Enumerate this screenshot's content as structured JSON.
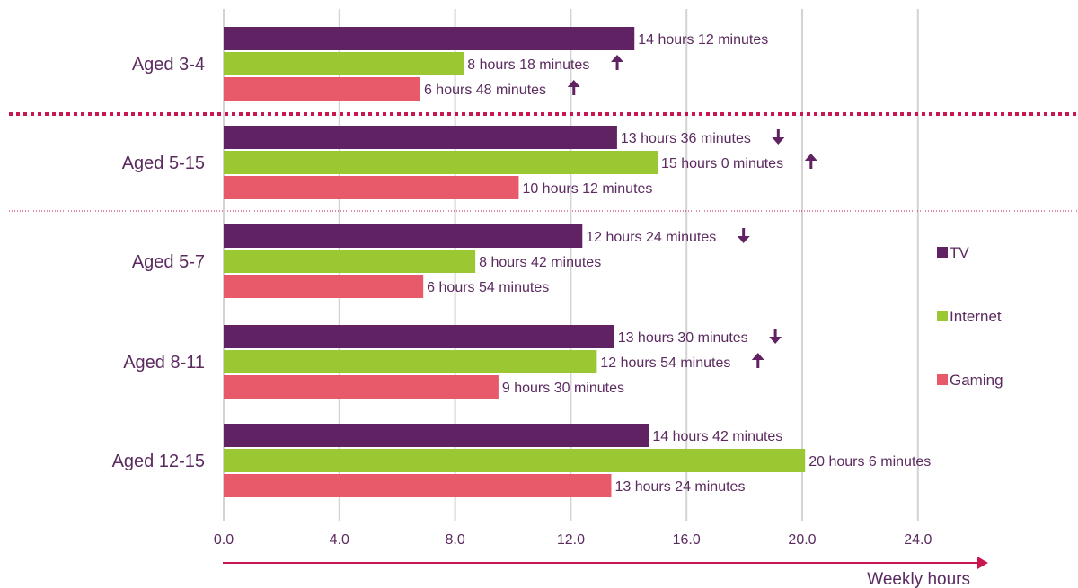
{
  "chart_data": {
    "type": "bar",
    "orientation": "horizontal",
    "categories": [
      "Aged 3-4",
      "Aged 5-15",
      "Aged 5-7",
      "Aged 8-11",
      "Aged 12-15"
    ],
    "series": [
      {
        "name": "TV",
        "color": "#612263",
        "values": [
          14.2,
          13.6,
          12.4,
          13.5,
          14.7
        ],
        "labels": [
          "14 hours 12 minutes",
          "13 hours 36 minutes",
          "12 hours 24 minutes",
          "13 hours 30 minutes",
          "14 hours 42 minutes"
        ],
        "trend": [
          null,
          "down",
          "down",
          "down",
          null
        ]
      },
      {
        "name": "Internet",
        "color": "#9bc732",
        "values": [
          8.3,
          15.0,
          8.7,
          12.9,
          20.1
        ],
        "labels": [
          "8 hours 18 minutes",
          "15 hours 0 minutes",
          "8 hours 42 minutes",
          "12 hours 54 minutes",
          "20 hours 6 minutes"
        ],
        "trend": [
          "up",
          "up",
          null,
          "up",
          null
        ]
      },
      {
        "name": "Gaming",
        "color": "#e85a6a",
        "values": [
          6.8,
          10.2,
          6.9,
          9.5,
          13.4
        ],
        "labels": [
          "6 hours 48 minutes",
          "10 hours 12 minutes",
          "6 hours 54 minutes",
          "9 hours 30 minutes",
          "13 hours 24 minutes"
        ],
        "trend": [
          "up",
          null,
          null,
          null,
          null
        ]
      }
    ],
    "xlabel": "Weekly hours",
    "xlim": [
      0,
      24
    ],
    "xticks": [
      "0.0",
      "4.0",
      "8.0",
      "12.0",
      "16.0",
      "20.0",
      "24.0"
    ],
    "grid": true,
    "legend": "right",
    "trend_arrow_color": "#612263",
    "axis_arrow_color": "#c8174f",
    "separator_color": "#c8174f"
  }
}
